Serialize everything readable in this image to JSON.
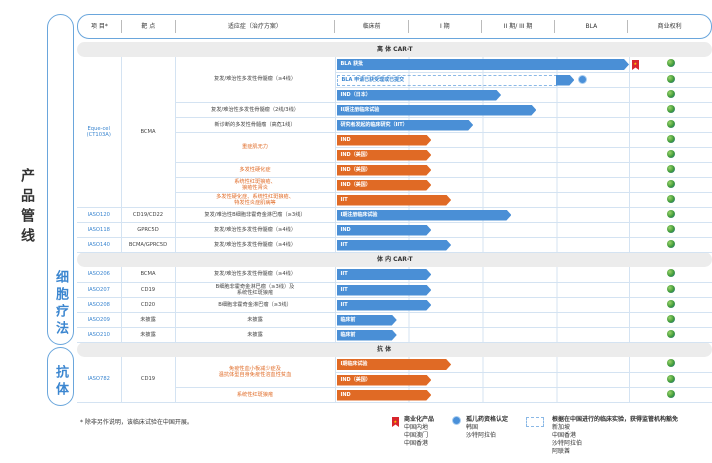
{
  "title": "产品管线",
  "groups": [
    {
      "label": "细胞疗法"
    },
    {
      "label": "抗体"
    }
  ],
  "header": [
    "项 目*",
    "靶 点",
    "适应症（治疗方案）",
    "临床前",
    "I 期",
    "II 期/ III 期",
    "BLA",
    "商业权利"
  ],
  "colors": {
    "blue": "#4a8fd6",
    "orange": "#e06a25",
    "accent": "#3b86d0"
  },
  "sections": [
    {
      "title": "离 体 CAR-T",
      "rows": [
        {
          "project": "Eque-cel\n(CT103A)",
          "project_rowspan": 10,
          "target": "BCMA",
          "target_rowspan": 10,
          "indication": "复发/难治性多发性骨髓瘤（≥4线）",
          "ind_rowspan": 3,
          "color": "blue",
          "bar": {
            "label": "BLA 获批",
            "progress": 3.98,
            "icon": "commercial-ribbon"
          }
        },
        {
          "bar": {
            "label": "BLA 申请已获受理或已提交",
            "progress": 3.25,
            "dashed_until": 3.0,
            "icon": "orphan-drug-rosette"
          },
          "color": "blue"
        },
        {
          "bar": {
            "label": "IND（日本）",
            "progress": 2.24
          },
          "color": "blue"
        },
        {
          "indication": "复发/难治性多发性骨髓瘤（2线/3线）",
          "color": "blue",
          "bar": {
            "label": "II期注册临床试验",
            "progress": 2.72
          }
        },
        {
          "indication": "新诊断的多发性骨髓瘤（高危1线）",
          "color": "blue",
          "bar": {
            "label": "研究者发起的临床研究（IIT）",
            "progress": 1.86
          }
        },
        {
          "indication": "重症肌无力",
          "ind_rowspan": 2,
          "color": "orange",
          "bar": {
            "label": "IND",
            "progress": 1.29
          }
        },
        {
          "color": "orange",
          "bar": {
            "label": "IND（美国）",
            "progress": 1.29
          }
        },
        {
          "indication": "多发性硬化症",
          "color": "orange",
          "bar": {
            "label": "IND（美国）",
            "progress": 1.29
          }
        },
        {
          "indication": "系统性红斑狼疮、\n狼疮性肾炎",
          "color": "orange",
          "bar": {
            "label": "IND（美国）",
            "progress": 1.29
          }
        },
        {
          "indication": "多发性硬化症、系统性红斑狼疮、\n特发性炎症肌病等",
          "color": "orange",
          "bar": {
            "label": "IIT",
            "progress": 1.56
          }
        },
        {
          "project": "IASO120",
          "target": "CD19/CD22",
          "indication": "复发/难治性B细胞非霍奇金淋巴瘤（≥3线）",
          "color": "blue",
          "bar": {
            "label": "I期注册临床试验",
            "progress": 2.38
          }
        },
        {
          "project": "IASO118",
          "target": "GPRC5D",
          "indication": "复发/难治性多发性骨髓瘤（≥4线）",
          "color": "blue",
          "bar": {
            "label": "IND",
            "progress": 1.29
          }
        },
        {
          "project": "IASO140",
          "target": "BCMA/GPRC5D",
          "indication": "复发/难治性多发性骨髓瘤（≥4线）",
          "color": "blue",
          "bar": {
            "label": "IIT",
            "progress": 1.56
          }
        }
      ]
    },
    {
      "title": "体 内 CAR-T",
      "rows": [
        {
          "project": "IASO206",
          "target": "BCMA",
          "indication": "复发/难治性多发性骨髓瘤（≥4线）",
          "color": "blue",
          "bar": {
            "label": "IIT",
            "progress": 1.29
          }
        },
        {
          "project": "IASO207",
          "target": "CD19",
          "indication": "B细胞非霍奇金淋巴瘤（≥3线）及\n系统性红斑狼疮",
          "color": "blue",
          "bar": {
            "label": "IIT",
            "progress": 1.29
          }
        },
        {
          "project": "IASO208",
          "target": "CD20",
          "indication": "B细胞非霍奇金淋巴瘤（≥3线）",
          "color": "blue",
          "bar": {
            "label": "IIT",
            "progress": 1.29
          }
        },
        {
          "project": "IASO209",
          "target": "未披露",
          "indication": "未披露",
          "color": "blue",
          "bar": {
            "label": "临床前",
            "progress": 0.82
          }
        },
        {
          "project": "IASO210",
          "target": "未披露",
          "indication": "未披露",
          "color": "blue",
          "bar": {
            "label": "临床前",
            "progress": 0.82
          }
        }
      ]
    },
    {
      "title": "抗 体",
      "rows": [
        {
          "project": "IASO782",
          "project_rowspan": 3,
          "target": "CD19",
          "target_rowspan": 3,
          "indication": "免疫性血小板减少症及\n温抗体型自身免疫性溶血性贫血",
          "ind_rowspan": 2,
          "color": "orange",
          "bar": {
            "label": "I期临床试验",
            "progress": 1.56
          }
        },
        {
          "color": "orange",
          "bar": {
            "label": "IND（美国）",
            "progress": 1.29
          }
        },
        {
          "indication": "系统性红斑狼疮",
          "color": "orange",
          "bar": {
            "label": "IND",
            "progress": 1.29
          }
        }
      ]
    }
  ],
  "footnote": "* 除非另作说明，该临床试验在中国开展。",
  "legend": [
    {
      "title": "商业化产品",
      "icon": "commercial-ribbon",
      "items": [
        "中国内地",
        "中国澳门",
        "中国香港"
      ]
    },
    {
      "title": "孤儿药资格认定",
      "icon": "orphan-drug-rosette",
      "items": [
        "韩国",
        "沙特阿拉伯"
      ]
    },
    {
      "title": "根据在中国进行的临床实验，获得监管机构豁免",
      "icon": "dashed-box",
      "items": [
        "新加坡",
        "中国香港",
        "沙特阿拉伯",
        "阿联酋"
      ]
    }
  ]
}
